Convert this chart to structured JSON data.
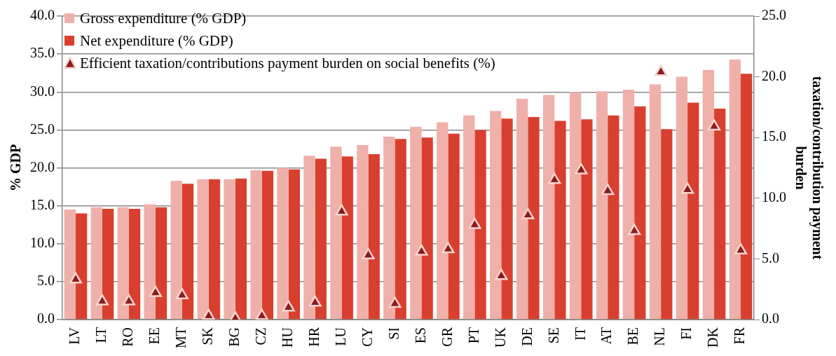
{
  "chart_data": {
    "type": "bar",
    "categories": [
      "LV",
      "LT",
      "RO",
      "EE",
      "MT",
      "SK",
      "BG",
      "CZ",
      "HU",
      "HR",
      "LU",
      "CY",
      "SI",
      "ES",
      "GR",
      "PT",
      "UK",
      "DE",
      "SE",
      "IT",
      "AT",
      "BE",
      "NL",
      "FI",
      "DK",
      "FR"
    ],
    "series": [
      {
        "name": "Gross expenditure (% GDP)",
        "color": "#efb0aa",
        "values": [
          14.5,
          14.8,
          14.8,
          15.2,
          18.3,
          18.5,
          18.5,
          19.7,
          20.0,
          21.6,
          22.8,
          23.0,
          24.1,
          25.4,
          26.0,
          26.9,
          27.5,
          29.1,
          29.6,
          30.0,
          30.1,
          30.3,
          31.0,
          32.0,
          32.9,
          34.3
        ]
      },
      {
        "name": "Net expenditure (% GDP)",
        "color": "#d93f2e",
        "values": [
          14.0,
          14.6,
          14.6,
          14.8,
          17.9,
          18.5,
          18.6,
          19.6,
          19.8,
          21.2,
          21.5,
          21.8,
          23.8,
          24.0,
          24.5,
          25.0,
          26.5,
          26.7,
          26.2,
          26.4,
          26.9,
          28.1,
          25.1,
          28.6,
          27.8,
          32.4
        ]
      },
      {
        "name": "Efficient taxation/contributions payment burden on social benefits (%)",
        "type": "scatter",
        "axis": "y2",
        "color": "#8b1c1c",
        "values": [
          3.3,
          1.5,
          1.5,
          2.2,
          2.0,
          0.3,
          0.1,
          0.3,
          1.0,
          1.4,
          8.9,
          5.3,
          1.3,
          5.6,
          5.8,
          7.8,
          3.6,
          8.6,
          11.5,
          12.3,
          10.6,
          7.3,
          20.4,
          10.7,
          15.9,
          5.7
        ]
      }
    ],
    "ylabel": "% GDP",
    "y2label": "taxation/contribution payment burden",
    "ylim": [
      0,
      40
    ],
    "yticks": [
      {
        "value": 0,
        "label": "0.0"
      },
      {
        "value": 5,
        "label": "5.0"
      },
      {
        "value": 10,
        "label": "10.0"
      },
      {
        "value": 15,
        "label": "15.0"
      },
      {
        "value": 20,
        "label": "20.0"
      },
      {
        "value": 25,
        "label": "25.0"
      },
      {
        "value": 30,
        "label": "30.0"
      },
      {
        "value": 35,
        "label": "35.0"
      },
      {
        "value": 40,
        "label": "40.0"
      }
    ],
    "y2lim": [
      0,
      25
    ],
    "y2ticks": [
      {
        "value": 0,
        "label": "0.0"
      },
      {
        "value": 5,
        "label": "5.0"
      },
      {
        "value": 10,
        "label": "10.0"
      },
      {
        "value": 15,
        "label": "15.0"
      },
      {
        "value": 20,
        "label": "20.0"
      },
      {
        "value": 25,
        "label": "25.0"
      }
    ],
    "grid": "y",
    "legend": "top left",
    "marker": "triangle"
  }
}
